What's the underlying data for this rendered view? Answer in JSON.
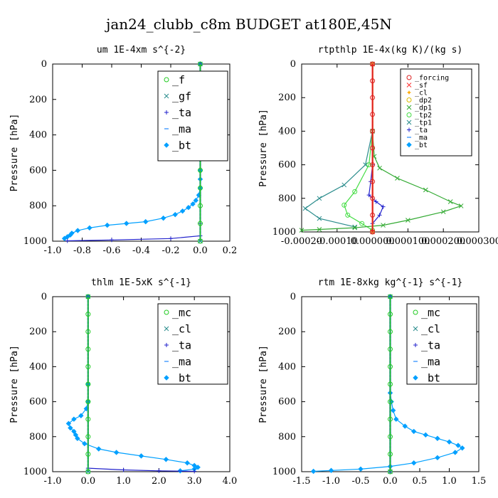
{
  "figure_title": "jan24_clubb_c8m  BUDGET at180E,45N",
  "chart_data": [
    {
      "type": "line",
      "title": "um  1E-4xm s^{-2}",
      "ylabel": "Pressure [hPa]",
      "xlim": [
        -1.0,
        0.2
      ],
      "ylim": [
        1000,
        0
      ],
      "xticks": [
        "-1.0",
        "-0.8",
        "-0.6",
        "-0.4",
        "-0.2",
        "0.0",
        "0.2"
      ],
      "xtick_values": [
        -1.0,
        -0.8,
        -0.6,
        -0.4,
        -0.2,
        0.0,
        0.2
      ],
      "yticks": [
        "0",
        "200",
        "400",
        "600",
        "800",
        "1000"
      ],
      "ytick_values": [
        0,
        200,
        400,
        600,
        800,
        1000
      ],
      "legend_position": "top-right",
      "series": [
        {
          "name": "_f",
          "color": "#22cc22",
          "marker": "o",
          "points": [
            [
              0.0,
              0
            ],
            [
              0.0,
              100
            ],
            [
              0.0,
              200
            ],
            [
              0.0,
              300
            ],
            [
              0.0,
              400
            ],
            [
              0.0,
              500
            ],
            [
              0.0,
              600
            ],
            [
              0.0,
              700
            ],
            [
              0.0,
              800
            ],
            [
              0.0,
              900
            ],
            [
              0.0,
              1000
            ]
          ]
        },
        {
          "name": "_gf",
          "color": "#2a8c8c",
          "marker": "x",
          "points": [
            [
              0.0,
              0
            ],
            [
              0.0,
              500
            ],
            [
              0.0,
              1000
            ]
          ]
        },
        {
          "name": "_ta",
          "color": "#2222cc",
          "marker": "+",
          "points": [
            [
              0.0,
              0
            ],
            [
              0.0,
              900
            ],
            [
              0.0,
              970
            ],
            [
              -0.2,
              985
            ],
            [
              -0.6,
              993
            ],
            [
              -0.9,
              998
            ]
          ]
        },
        {
          "name": "_ma",
          "color": "#2288ff",
          "marker": "-",
          "points": [
            [
              0.0,
              0
            ],
            [
              0.0,
              1000
            ]
          ]
        },
        {
          "name": "_bt",
          "color": "#00a0ff",
          "marker": "diamond",
          "points": [
            [
              0.0,
              0
            ],
            [
              0.0,
              100
            ],
            [
              0.0,
              200
            ],
            [
              0.0,
              300
            ],
            [
              0.0,
              400
            ],
            [
              0.0,
              500
            ],
            [
              0.0,
              600
            ],
            [
              0.0,
              650
            ],
            [
              0.0,
              700
            ],
            [
              -0.01,
              740
            ],
            [
              -0.03,
              770
            ],
            [
              -0.05,
              790
            ],
            [
              -0.08,
              810
            ],
            [
              -0.12,
              830
            ],
            [
              -0.17,
              850
            ],
            [
              -0.25,
              870
            ],
            [
              -0.37,
              890
            ],
            [
              -0.5,
              900
            ],
            [
              -0.63,
              910
            ],
            [
              -0.75,
              925
            ],
            [
              -0.83,
              940
            ],
            [
              -0.87,
              955
            ],
            [
              -0.88,
              965
            ],
            [
              -0.9,
              975
            ],
            [
              -0.92,
              985
            ]
          ]
        }
      ]
    },
    {
      "type": "line",
      "title": "rtpthlp  1E-4x(kg K)/(kg s)",
      "ylabel": "Pressure [hPa]",
      "xlim": [
        -0.0002,
        0.0003
      ],
      "ylim": [
        1000,
        0
      ],
      "xticks": [
        "-0.00020",
        "-0.00010",
        "0.000000",
        "0.000100",
        "0.000200",
        "0.000300"
      ],
      "xtick_values": [
        -0.0002,
        -0.0001,
        0.0,
        0.0001,
        0.0002,
        0.0003
      ],
      "yticks": [
        "0",
        "200",
        "400",
        "600",
        "800",
        "1000"
      ],
      "ytick_values": [
        0,
        200,
        400,
        600,
        800,
        1000
      ],
      "legend_position": "top-right",
      "series": [
        {
          "name": "_forcing",
          "color": "#dd2222",
          "marker": "o",
          "points": [
            [
              0.0,
              0
            ],
            [
              0.0,
              100
            ],
            [
              0.0,
              200
            ],
            [
              0.0,
              300
            ],
            [
              0.0,
              400
            ],
            [
              0.0,
              500
            ],
            [
              0.0,
              600
            ],
            [
              0.0,
              700
            ],
            [
              0.0,
              800
            ],
            [
              0.0,
              900
            ],
            [
              0.0,
              1000
            ]
          ]
        },
        {
          "name": "_sf",
          "color": "#ff3333",
          "marker": "x",
          "points": [
            [
              0.0,
              0
            ],
            [
              0.0,
              1000
            ]
          ]
        },
        {
          "name": "_cl",
          "color": "#ffaa00",
          "marker": "star",
          "points": [
            [
              0.0,
              0
            ],
            [
              0.0,
              1000
            ]
          ]
        },
        {
          "name": "_dp2",
          "color": "#ddbb00",
          "marker": "o",
          "points": [
            [
              0.0,
              0
            ],
            [
              0.0,
              1000
            ]
          ]
        },
        {
          "name": "_dp1",
          "color": "#33aa33",
          "marker": "x",
          "points": [
            [
              0.0,
              0
            ],
            [
              0.0,
              400
            ],
            [
              5e-06,
              550
            ],
            [
              2e-05,
              620
            ],
            [
              7e-05,
              680
            ],
            [
              0.00015,
              750
            ],
            [
              0.00022,
              820
            ],
            [
              0.00025,
              845
            ],
            [
              0.0002,
              880
            ],
            [
              0.0001,
              930
            ],
            [
              3e-05,
              960
            ],
            [
              -5e-05,
              975
            ],
            [
              -0.00015,
              985
            ],
            [
              -0.0002,
              990
            ]
          ]
        },
        {
          "name": "_tp2",
          "color": "#44dd44",
          "marker": "o",
          "points": [
            [
              0.0,
              0
            ],
            [
              0.0,
              400
            ],
            [
              -1e-05,
              600
            ],
            [
              -5e-05,
              760
            ],
            [
              -8e-05,
              840
            ],
            [
              -7e-05,
              900
            ],
            [
              -3e-05,
              950
            ],
            [
              0.0,
              990
            ]
          ]
        },
        {
          "name": "_tp1",
          "color": "#2a8c8c",
          "marker": "x",
          "points": [
            [
              0.0,
              0
            ],
            [
              0.0,
              400
            ],
            [
              -2e-05,
              600
            ],
            [
              -8e-05,
              720
            ],
            [
              -0.00015,
              800
            ],
            [
              -0.00019,
              860
            ],
            [
              -0.00015,
              920
            ],
            [
              -5e-05,
              970
            ]
          ]
        },
        {
          "name": "_ta",
          "color": "#2222cc",
          "marker": "+",
          "points": [
            [
              0.0,
              0
            ],
            [
              0.0,
              600
            ],
            [
              -5e-06,
              700
            ],
            [
              -1e-05,
              780
            ],
            [
              1e-05,
              820
            ],
            [
              3e-05,
              850
            ],
            [
              2e-05,
              900
            ],
            [
              0.0,
              950
            ]
          ]
        },
        {
          "name": "_ma",
          "color": "#2288ff",
          "marker": "-",
          "points": [
            [
              0.0,
              0
            ],
            [
              0.0,
              1000
            ]
          ]
        },
        {
          "name": "_bt",
          "color": "#00a0ff",
          "marker": "diamond",
          "points": [
            [
              0.0,
              0
            ],
            [
              0.0,
              1000
            ]
          ]
        }
      ]
    },
    {
      "type": "line",
      "title": "thlm  1E-5xK s^{-1}",
      "ylabel": "Pressure [hPa]",
      "xlim": [
        -1.0,
        4.0
      ],
      "ylim": [
        1000,
        0
      ],
      "xticks": [
        "-1.0",
        "0.0",
        "1.0",
        "2.0",
        "3.0",
        "4.0"
      ],
      "xtick_values": [
        -1.0,
        0.0,
        1.0,
        2.0,
        3.0,
        4.0
      ],
      "yticks": [
        "0",
        "200",
        "400",
        "600",
        "800",
        "1000"
      ],
      "ytick_values": [
        0,
        200,
        400,
        600,
        800,
        1000
      ],
      "legend_position": "top-right",
      "series": [
        {
          "name": "_mc",
          "color": "#22cc22",
          "marker": "o",
          "points": [
            [
              0.0,
              0
            ],
            [
              0.0,
              100
            ],
            [
              0.0,
              200
            ],
            [
              0.0,
              300
            ],
            [
              0.0,
              400
            ],
            [
              0.0,
              500
            ],
            [
              0.0,
              600
            ],
            [
              0.0,
              700
            ],
            [
              0.0,
              800
            ],
            [
              0.0,
              900
            ],
            [
              0.0,
              1000
            ]
          ]
        },
        {
          "name": "_cl",
          "color": "#2a8c8c",
          "marker": "x",
          "points": [
            [
              0.0,
              0
            ],
            [
              0.0,
              1000
            ]
          ]
        },
        {
          "name": "_ta",
          "color": "#2222cc",
          "marker": "+",
          "points": [
            [
              0.0,
              0
            ],
            [
              0.0,
              980
            ],
            [
              1.0,
              990
            ],
            [
              2.0,
              995
            ],
            [
              3.0,
              998
            ]
          ]
        },
        {
          "name": "_ma",
          "color": "#2288ff",
          "marker": "-",
          "points": [
            [
              0.0,
              0
            ],
            [
              0.0,
              1000
            ]
          ]
        },
        {
          "name": "_bt",
          "color": "#00a0ff",
          "marker": "diamond",
          "points": [
            [
              0.0,
              0
            ],
            [
              0.0,
              500
            ],
            [
              0.0,
              600
            ],
            [
              -0.05,
              640
            ],
            [
              -0.2,
              680
            ],
            [
              -0.4,
              700
            ],
            [
              -0.55,
              725
            ],
            [
              -0.5,
              750
            ],
            [
              -0.4,
              770
            ],
            [
              -0.35,
              790
            ],
            [
              -0.3,
              810
            ],
            [
              -0.1,
              840
            ],
            [
              0.3,
              870
            ],
            [
              0.8,
              890
            ],
            [
              1.5,
              910
            ],
            [
              2.2,
              930
            ],
            [
              2.8,
              950
            ],
            [
              3.0,
              965
            ],
            [
              3.1,
              975
            ],
            [
              3.0,
              985
            ],
            [
              2.6,
              995
            ]
          ]
        }
      ]
    },
    {
      "type": "line",
      "title": "rtm  1E-8xkg kg^{-1} s^{-1}",
      "ylabel": "Pressure [hPa]",
      "xlim": [
        -1.5,
        1.5
      ],
      "ylim": [
        1000,
        0
      ],
      "xticks": [
        "-1.5",
        "-1.0",
        "-0.5",
        "0.0",
        "0.5",
        "1.0",
        "1.5"
      ],
      "xtick_values": [
        -1.5,
        -1.0,
        -0.5,
        0.0,
        0.5,
        1.0,
        1.5
      ],
      "yticks": [
        "0",
        "200",
        "400",
        "600",
        "800",
        "1000"
      ],
      "ytick_values": [
        0,
        200,
        400,
        600,
        800,
        1000
      ],
      "legend_position": "top-right",
      "series": [
        {
          "name": "_mc",
          "color": "#22cc22",
          "marker": "o",
          "points": [
            [
              0.0,
              0
            ],
            [
              0.0,
              100
            ],
            [
              0.0,
              200
            ],
            [
              0.0,
              300
            ],
            [
              0.0,
              400
            ],
            [
              0.0,
              500
            ],
            [
              0.0,
              600
            ],
            [
              0.0,
              700
            ],
            [
              0.0,
              800
            ],
            [
              0.0,
              900
            ],
            [
              0.0,
              1000
            ]
          ]
        },
        {
          "name": "_cl",
          "color": "#2a8c8c",
          "marker": "x",
          "points": [
            [
              0.0,
              0
            ],
            [
              0.0,
              1000
            ]
          ]
        },
        {
          "name": "_ta",
          "color": "#2222cc",
          "marker": "+",
          "points": [
            [
              0.0,
              0
            ],
            [
              0.0,
              1000
            ]
          ]
        },
        {
          "name": "_ma",
          "color": "#2288ff",
          "marker": "-",
          "points": [
            [
              0.0,
              0
            ],
            [
              0.0,
              1000
            ]
          ]
        },
        {
          "name": "_bt",
          "color": "#00a0ff",
          "marker": "diamond",
          "points": [
            [
              0.0,
              0
            ],
            [
              0.0,
              550
            ],
            [
              0.02,
              600
            ],
            [
              0.05,
              650
            ],
            [
              0.1,
              700
            ],
            [
              0.25,
              740
            ],
            [
              0.4,
              770
            ],
            [
              0.6,
              790
            ],
            [
              0.8,
              810
            ],
            [
              1.0,
              830
            ],
            [
              1.15,
              850
            ],
            [
              1.22,
              865
            ],
            [
              1.1,
              890
            ],
            [
              0.8,
              920
            ],
            [
              0.4,
              950
            ],
            [
              0.0,
              970
            ],
            [
              -0.5,
              985
            ],
            [
              -1.0,
              993
            ],
            [
              -1.3,
              998
            ]
          ]
        }
      ]
    }
  ]
}
